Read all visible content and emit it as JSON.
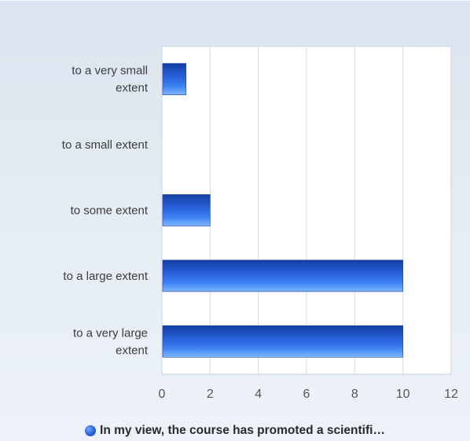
{
  "chart_data": {
    "type": "bar",
    "orientation": "horizontal",
    "categories": [
      [
        "to a very small",
        "extent"
      ],
      [
        "to a small extent"
      ],
      [
        "to some extent"
      ],
      [
        "to a large extent"
      ],
      [
        "to a very large",
        "extent"
      ]
    ],
    "series": [
      {
        "name": "In my view, the course has promoted a scientifi…",
        "values": [
          1,
          0,
          2,
          10,
          10
        ],
        "color": "#2a5bd7"
      }
    ],
    "xlim": [
      0,
      12
    ],
    "xticks": [
      "0",
      "2",
      "4",
      "6",
      "8",
      "10",
      "12"
    ],
    "grid": true,
    "legend_position": "bottom"
  }
}
